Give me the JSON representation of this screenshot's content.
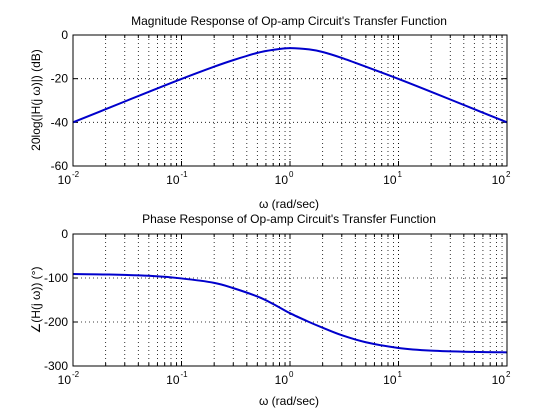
{
  "chart_data": [
    {
      "type": "line",
      "title": "Magnitude Response of Op-amp Circuit's Transfer Function",
      "xlabel": "ω (rad/sec)",
      "ylabel": "20log(|H(j ω)|) (dB)",
      "xscale": "log",
      "xlim": [
        0.01,
        100
      ],
      "ylim": [
        -60,
        0
      ],
      "xticks": [
        "10",
        "10",
        "10",
        "10",
        "10"
      ],
      "xtick_exponents": [
        "-2",
        "-1",
        "0",
        "1",
        "2"
      ],
      "yticks": [
        0,
        -20,
        -40,
        -60
      ],
      "ytick_labels": [
        "0",
        "-20",
        "-40",
        "-60"
      ],
      "grid": true,
      "line_color": "#0000cc",
      "series": [
        {
          "x": [
            0.01,
            0.02,
            0.05,
            0.1,
            0.2,
            0.3,
            0.5,
            0.7,
            1,
            1.5,
            2,
            3,
            5,
            10,
            20,
            50,
            100
          ],
          "values": [
            -40,
            -34,
            -26,
            -20.1,
            -14.5,
            -11.5,
            -8.2,
            -6.8,
            -6,
            -6.6,
            -7.8,
            -10.5,
            -14.5,
            -20.1,
            -26,
            -34,
            -40
          ]
        }
      ]
    },
    {
      "type": "line",
      "title": "Phase Response of Op-amp Circuit's Transfer Function",
      "xlabel": "ω (rad/sec)",
      "ylabel": "∠(H(j ω)) (°)",
      "xscale": "log",
      "xlim": [
        0.01,
        100
      ],
      "ylim": [
        -300,
        0
      ],
      "xticks": [
        "10",
        "10",
        "10",
        "10",
        "10"
      ],
      "xtick_exponents": [
        "-2",
        "-1",
        "0",
        "1",
        "2"
      ],
      "yticks": [
        0,
        -100,
        -200,
        -300
      ],
      "ytick_labels": [
        "0",
        "-100",
        "-200",
        "-300"
      ],
      "grid": true,
      "line_color": "#0000cc",
      "series": [
        {
          "x": [
            0.01,
            0.02,
            0.05,
            0.1,
            0.2,
            0.3,
            0.5,
            0.7,
            1,
            1.5,
            2,
            3,
            5,
            10,
            20,
            50,
            100
          ],
          "values": [
            -91,
            -92,
            -95,
            -101,
            -111,
            -123,
            -142,
            -159,
            -180,
            -200,
            -213,
            -230,
            -246,
            -259,
            -265,
            -268,
            -269
          ]
        }
      ]
    }
  ]
}
